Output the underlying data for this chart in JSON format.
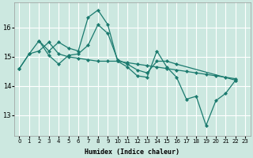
{
  "xlabel": "Humidex (Indice chaleur)",
  "xlim": [
    -0.5,
    23.5
  ],
  "ylim": [
    12.3,
    16.85
  ],
  "yticks": [
    13,
    14,
    15,
    16
  ],
  "xticks": [
    0,
    1,
    2,
    3,
    4,
    5,
    6,
    7,
    8,
    9,
    10,
    11,
    12,
    13,
    14,
    15,
    16,
    17,
    18,
    19,
    20,
    21,
    22,
    23
  ],
  "bg_color": "#cce8e0",
  "line_color": "#1a7a6e",
  "grid_color": "#ffffff",
  "series": [
    {
      "x": [
        0,
        1,
        2,
        3,
        4,
        5,
        6,
        7,
        8,
        9,
        10,
        11,
        12,
        13,
        14,
        15,
        16,
        17,
        18,
        19,
        20,
        21,
        22
      ],
      "y": [
        14.6,
        15.1,
        15.2,
        15.5,
        15.1,
        15.0,
        14.95,
        14.9,
        14.85,
        14.85,
        14.85,
        14.8,
        14.75,
        14.7,
        14.65,
        14.6,
        14.55,
        14.5,
        14.45,
        14.4,
        14.35,
        14.3,
        14.25
      ]
    },
    {
      "x": [
        2,
        3,
        4,
        5,
        6,
        7,
        8,
        9,
        10
      ],
      "y": [
        15.55,
        15.2,
        15.5,
        15.3,
        15.2,
        16.35,
        16.6,
        16.1,
        14.85
      ]
    },
    {
      "x": [
        0,
        1,
        2,
        3,
        4,
        5,
        6,
        7,
        8,
        9,
        10,
        11,
        12,
        13,
        14,
        15,
        16,
        22
      ],
      "y": [
        14.6,
        15.1,
        15.55,
        15.05,
        14.75,
        15.05,
        15.1,
        15.4,
        16.1,
        15.8,
        14.9,
        14.75,
        14.55,
        14.45,
        14.85,
        14.85,
        14.75,
        14.2
      ]
    },
    {
      "x": [
        10,
        11,
        12,
        13,
        14,
        15,
        16,
        17,
        18,
        19,
        20,
        21,
        22
      ],
      "y": [
        14.85,
        14.65,
        14.35,
        14.3,
        15.2,
        14.65,
        14.3,
        13.55,
        13.65,
        12.65,
        13.5,
        13.75,
        14.2
      ]
    }
  ]
}
